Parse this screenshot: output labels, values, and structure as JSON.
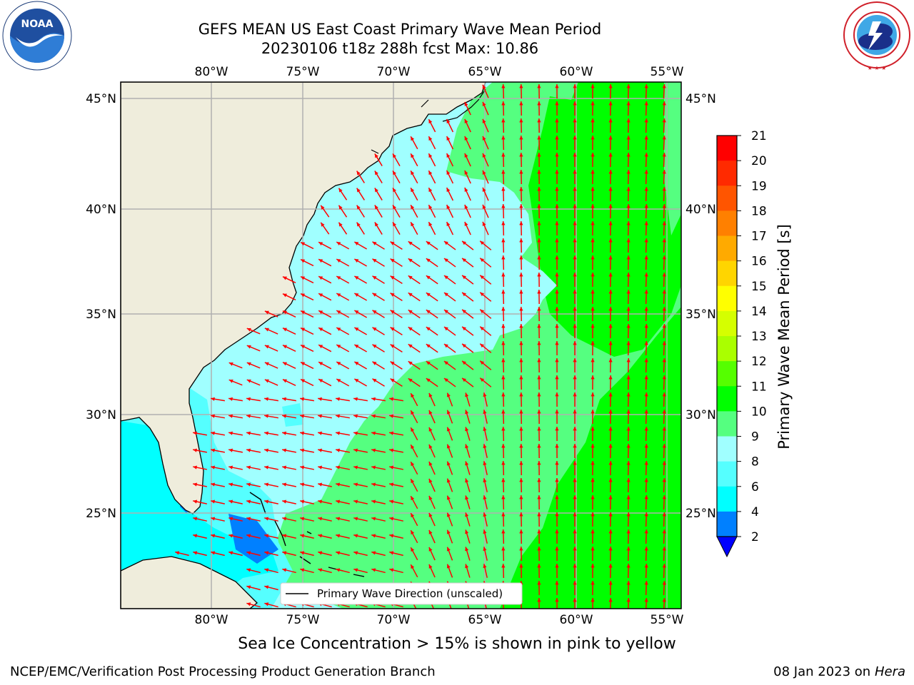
{
  "header": {
    "title_line1": "GEFS MEAN US East Coast Primary Wave Mean Period",
    "title_line2": "20230106 t18z 288h fcst   Max: 10.86"
  },
  "map": {
    "lon_labels": [
      "80°W",
      "75°W",
      "70°W",
      "65°W",
      "60°W",
      "55°W"
    ],
    "lat_labels": [
      "45°N",
      "40°N",
      "35°N",
      "30°N",
      "25°N"
    ],
    "legend_label": "Primary Wave Direction (unscaled)",
    "land_color": "#efeddc",
    "arrow_color": "#ff0000"
  },
  "colorbar": {
    "label": "Primary Wave Mean Period [s]",
    "ticks": [
      "21",
      "20",
      "19",
      "18",
      "17",
      "16",
      "15",
      "14",
      "13",
      "12",
      "11",
      "10",
      "9",
      "8",
      "6",
      "4",
      "2"
    ],
    "colors": [
      "#ff0000",
      "#ff2a00",
      "#ff5500",
      "#ff8000",
      "#ffaa00",
      "#ffd500",
      "#ffff00",
      "#d5ff00",
      "#aaff00",
      "#55ff00",
      "#00ff00",
      "#55ff80",
      "#a0ffff",
      "#55ffff",
      "#00ffff",
      "#0080ff",
      "#0000ff"
    ]
  },
  "note": "Sea Ice Concentration > 15% is shown in pink to yellow",
  "footer": {
    "left": "NCEP/EMC/Verification Post Processing Product Generation Branch",
    "date": "08 Jan 2023 on ",
    "host": "Hera"
  },
  "logos": {
    "noaa": "NOAA",
    "noaa_ring": "NATIONAL OCEANIC AND ATMOSPHERIC ADMINISTRATION • U.S. DEPARTMENT OF COMMERCE",
    "nws_ring": "NATIONAL WEATHER SERVICE"
  }
}
